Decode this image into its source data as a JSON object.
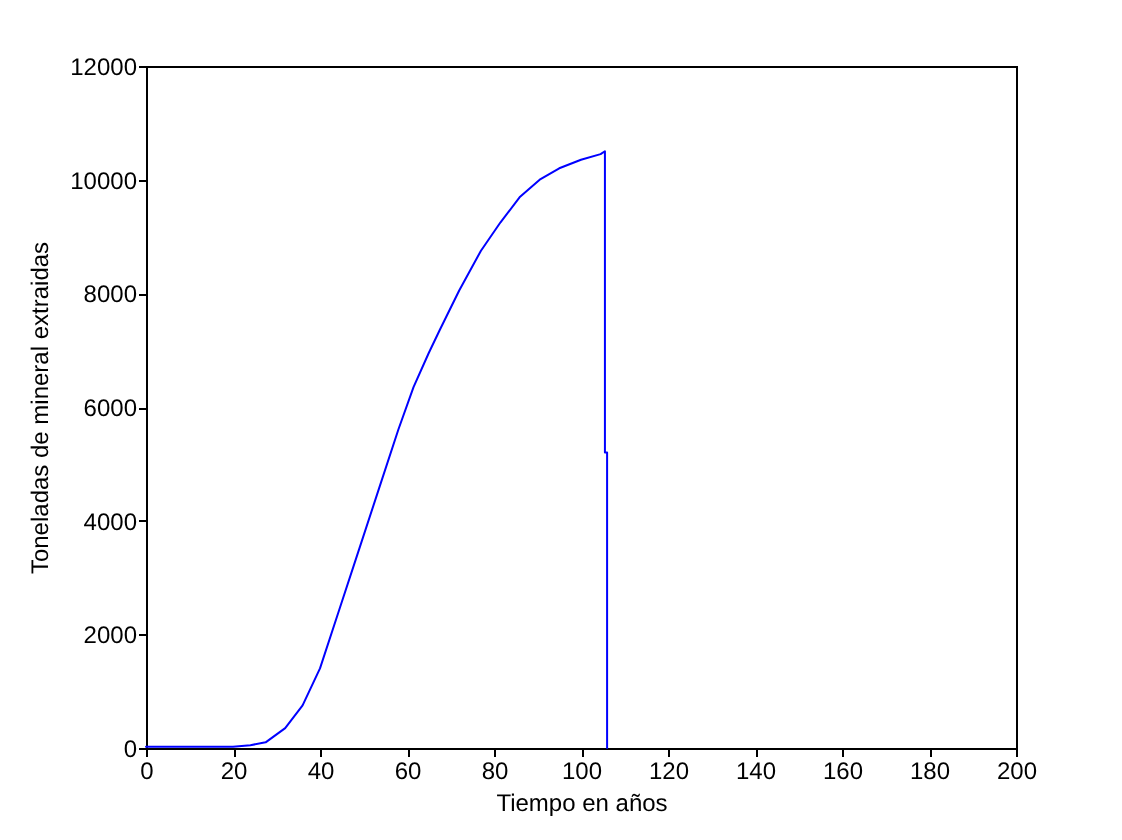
{
  "chart_data": {
    "type": "line",
    "xlabel": "Tiempo en años",
    "ylabel": "Toneladas de mineral extraidas",
    "xlim": [
      0,
      200
    ],
    "ylim": [
      0,
      12000
    ],
    "xticks": [
      0,
      20,
      40,
      60,
      80,
      100,
      120,
      140,
      160,
      180,
      200
    ],
    "yticks": [
      0,
      2000,
      4000,
      6000,
      8000,
      10000,
      12000
    ],
    "grid": false,
    "line_style": "solid",
    "series": [
      {
        "color": "#0000ff",
        "x": [
          0,
          10,
          20,
          24,
          27.5,
          32,
          36,
          40,
          44.5,
          49,
          53.5,
          58,
          61.5,
          65,
          67.5,
          72,
          77,
          81.5,
          86,
          90.5,
          95,
          100,
          104.5,
          105.5,
          105.5,
          106,
          106
        ],
        "values": [
          20,
          20,
          20,
          50,
          100,
          350,
          750,
          1400,
          2450,
          3500,
          4550,
          5600,
          6350,
          6950,
          7350,
          8050,
          8750,
          9250,
          9700,
          10000,
          10200,
          10350,
          10450,
          10500,
          5200,
          5200,
          0
        ]
      }
    ]
  }
}
